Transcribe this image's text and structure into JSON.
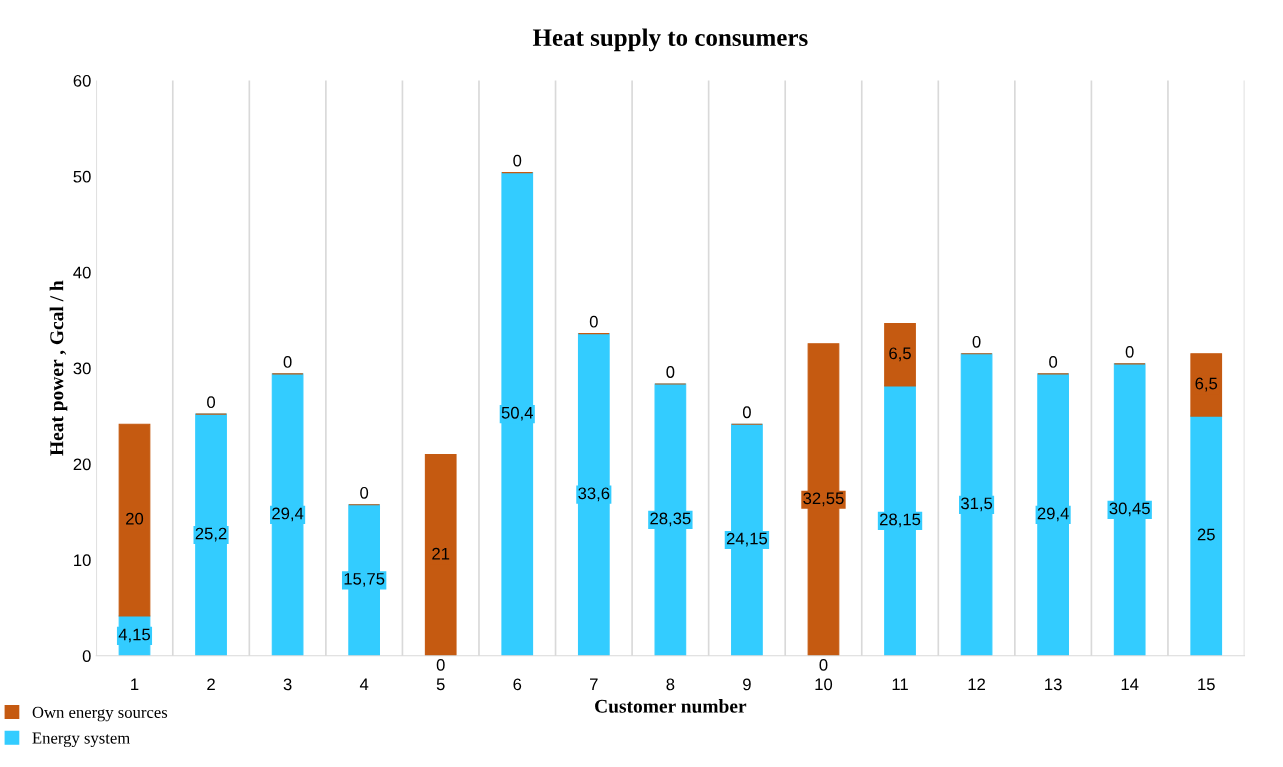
{
  "chart_data": {
    "type": "bar",
    "stacked": true,
    "title": "Heat supply to consumers",
    "xlabel": "Customer number",
    "ylabel": "Heat power , Gcal / h",
    "categories": [
      "1",
      "2",
      "3",
      "4",
      "5",
      "6",
      "7",
      "8",
      "9",
      "10",
      "11",
      "12",
      "13",
      "14",
      "15"
    ],
    "series": [
      {
        "name": "Energy system",
        "color": "#33ccff",
        "values": [
          4.15,
          25.2,
          29.4,
          15.75,
          0,
          50.4,
          33.6,
          28.35,
          24.15,
          0,
          28.15,
          31.5,
          29.4,
          30.45,
          25
        ],
        "value_labels": [
          "4,15",
          "25,2",
          "29,4",
          "15,75",
          "0",
          "50,4",
          "33,6",
          "28,35",
          "24,15",
          "0",
          "28,15",
          "31,5",
          "29,4",
          "30,45",
          "25"
        ]
      },
      {
        "name": "Own energy sources",
        "color": "#c55a11",
        "values": [
          20,
          0,
          0,
          0,
          21,
          0,
          0,
          0,
          0,
          32.55,
          6.5,
          0,
          0,
          0,
          6.5
        ],
        "value_labels": [
          "20",
          "0",
          "0",
          "0",
          "21",
          "0",
          "0",
          "0",
          "0",
          "32,55",
          "6,5",
          "0",
          "0",
          "0",
          "6,5"
        ]
      }
    ],
    "ylim": [
      0,
      60
    ],
    "yticks": [
      0,
      10,
      20,
      30,
      40,
      50,
      60
    ],
    "grid": "x",
    "legend": "bottom left"
  }
}
